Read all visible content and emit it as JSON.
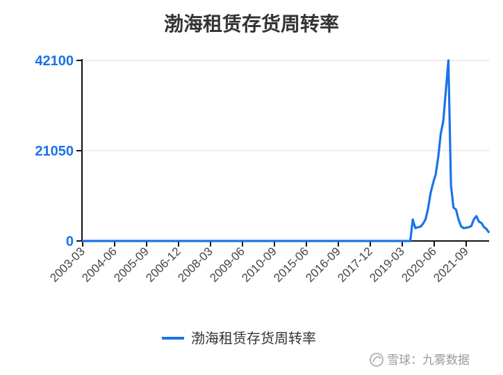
{
  "chart_data": {
    "type": "line",
    "title": "渤海租赁存货周转率",
    "xlabel": "",
    "ylabel": "",
    "ylim": [
      0,
      42100
    ],
    "yticks": [
      "0",
      "21050",
      "42100"
    ],
    "xticks": [
      "2003-03",
      "2004-06",
      "2005-09",
      "2006-12",
      "2008-03",
      "2009-06",
      "2010-09",
      "2015-06",
      "2016-09",
      "2017-12",
      "2019-03",
      "2020-06",
      "2021-09"
    ],
    "grid": true,
    "legend_position": "bottom",
    "series": [
      {
        "name": "渤海租赁存货周转率",
        "color": "#1a73e8",
        "values": [
          0,
          0,
          0,
          0,
          0,
          0,
          0,
          0,
          0,
          0,
          0,
          0,
          0,
          0,
          0,
          0,
          0,
          0,
          0,
          0,
          0,
          0,
          0,
          0,
          0,
          0,
          0,
          0,
          0,
          0,
          0,
          0,
          0,
          0,
          0,
          0,
          0,
          0,
          0,
          0,
          0,
          0,
          0,
          0,
          0,
          0,
          0,
          0,
          0,
          0,
          0,
          0,
          0,
          0,
          0,
          0,
          0,
          0,
          0,
          0,
          0,
          0,
          0,
          0,
          0,
          0,
          0,
          0,
          0,
          0,
          0,
          0,
          0,
          0,
          0,
          0,
          0,
          0,
          0,
          0,
          0,
          0,
          0,
          0,
          0,
          0,
          0,
          0,
          0,
          0,
          0,
          0,
          0,
          0,
          0,
          0,
          0,
          0,
          0,
          0,
          0,
          0,
          0,
          0,
          0,
          0,
          0,
          0,
          0,
          0,
          0,
          0,
          0,
          0,
          0,
          0,
          0,
          0,
          0,
          0,
          0,
          0,
          0,
          0,
          0,
          0,
          0,
          0,
          0,
          0,
          5000,
          3000,
          3200,
          3300,
          4000,
          5000,
          7500,
          11200,
          13500,
          15500,
          19600,
          25000,
          28000,
          35000,
          42100,
          13000,
          7800,
          7300,
          5000,
          3400,
          3000,
          3100,
          3200,
          3500,
          5000,
          5800,
          4500,
          4200,
          3200,
          2800,
          1900
        ]
      }
    ]
  },
  "axis_color": "#1a73e8",
  "watermark": "雪球：九雾数据"
}
